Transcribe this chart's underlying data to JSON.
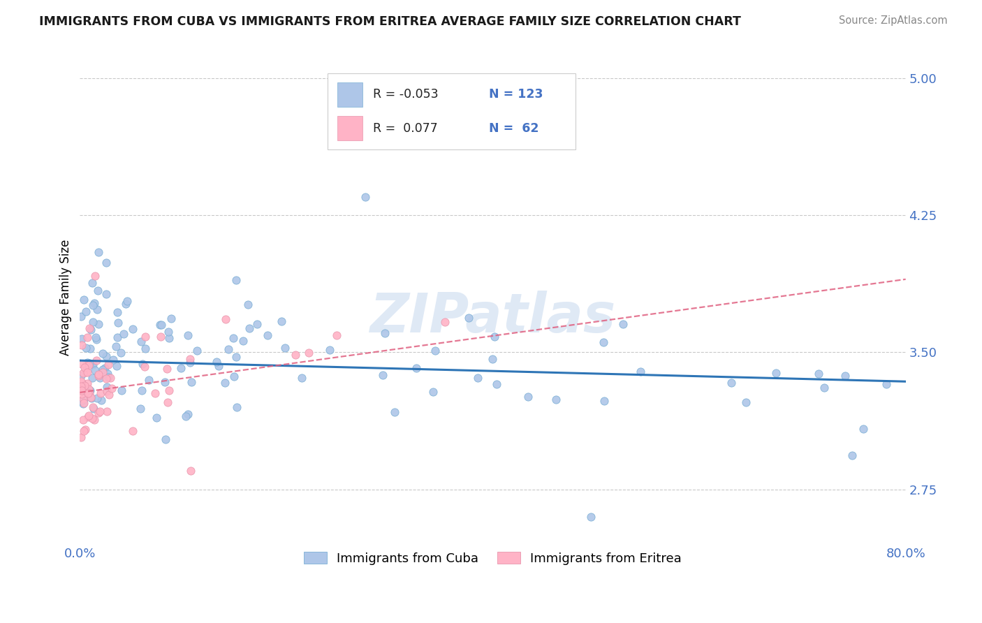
{
  "title": "IMMIGRANTS FROM CUBA VS IMMIGRANTS FROM ERITREA AVERAGE FAMILY SIZE CORRELATION CHART",
  "source": "Source: ZipAtlas.com",
  "ylabel": "Average Family Size",
  "xmin": 0.0,
  "xmax": 0.8,
  "ymin": 2.45,
  "ymax": 5.15,
  "yticks": [
    2.75,
    3.5,
    4.25,
    5.0
  ],
  "xticks": [
    0.0,
    0.8
  ],
  "xticklabels": [
    "0.0%",
    "80.0%"
  ],
  "tick_color": "#4472C4",
  "grid_color": "#BBBBBB",
  "cuba_color": "#AEC6E8",
  "cuba_edge": "#7BAFD4",
  "eritrea_color": "#FFB3C6",
  "eritrea_edge": "#E896AD",
  "cuba_line_color": "#2E75B6",
  "eritrea_line_color": "#E06080",
  "legend_R_cuba": "-0.053",
  "legend_N_cuba": "123",
  "legend_R_eritrea": "0.077",
  "legend_N_eritrea": "62",
  "legend_label_cuba": "Immigrants from Cuba",
  "legend_label_eritrea": "Immigrants from Eritrea",
  "watermark": "ZIPatlas"
}
